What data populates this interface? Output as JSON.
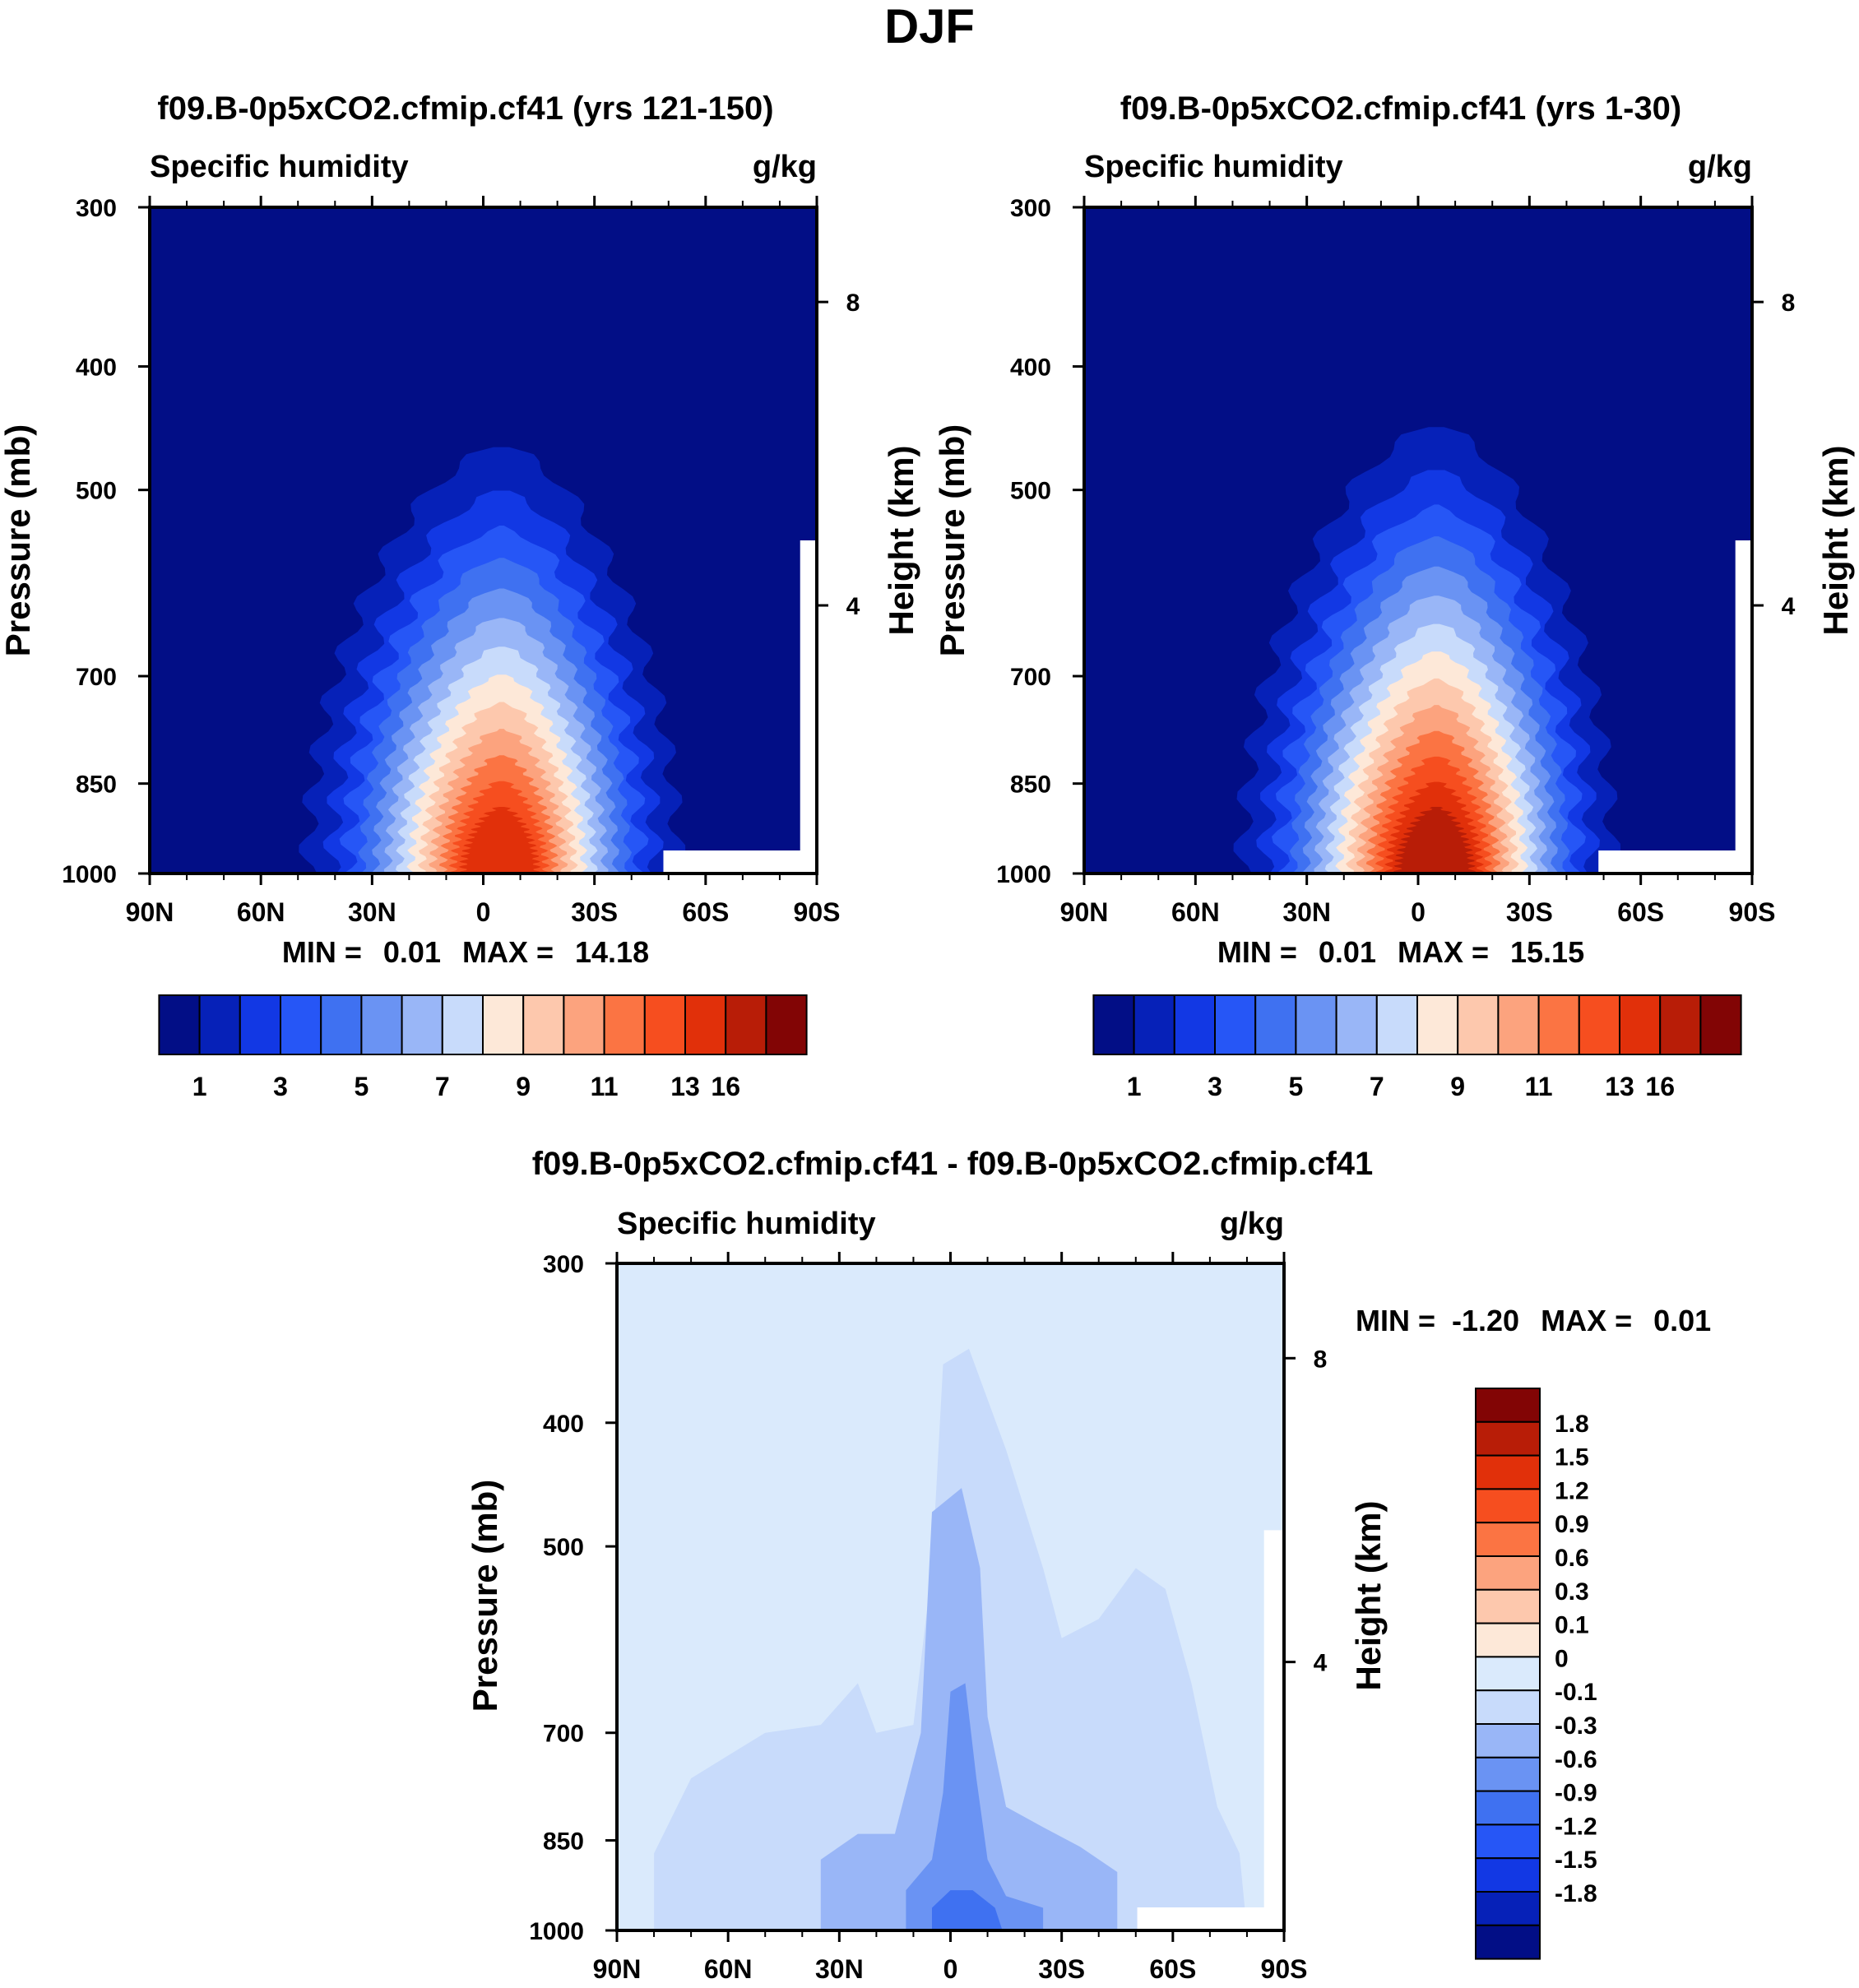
{
  "figure": {
    "title": "DJF"
  },
  "palettes": {
    "absolute": [
      "#020e86",
      "#0621b8",
      "#1238e4",
      "#2656f6",
      "#3f71f1",
      "#6a93f3",
      "#99b6f7",
      "#c8dbfb",
      "#fde8d8",
      "#fdc8ad",
      "#fca37e",
      "#fb7443",
      "#f64e1f",
      "#e1300a",
      "#b81d07",
      "#820505"
    ],
    "difference": [
      "#020e86",
      "#0621b8",
      "#1238e4",
      "#2656f6",
      "#3f71f1",
      "#6a93f3",
      "#99b6f7",
      "#c8dbfb",
      "#daeafc",
      "#fde8d8",
      "#fdc8ad",
      "#fca37e",
      "#fb7443",
      "#f64e1f",
      "#e1300a",
      "#b81d07",
      "#820505"
    ]
  },
  "chart_data": [
    {
      "type": "contour",
      "title": "f09.B-0p5xCO2.cfmip.cf41 (yrs 121-150)",
      "left_label": "Specific humidity",
      "units": "g/kg",
      "xlabel": "",
      "ylabel": "Pressure (mb)",
      "y2label": "Height (km)",
      "x_ticks": [
        "90N",
        "60N",
        "30N",
        "0",
        "30S",
        "60S",
        "90S"
      ],
      "y_ticks": [
        "300",
        "400",
        "500",
        "700",
        "850",
        "1000"
      ],
      "y2_ticks": [
        "8",
        "4"
      ],
      "min_label": "MIN =",
      "min_value": "0.01",
      "max_label": "MAX =",
      "max_value": "14.18",
      "colorbar_labels": [
        "1",
        "3",
        "5",
        "7",
        "9",
        "11",
        "13",
        "16"
      ],
      "peak_level": 13
    },
    {
      "type": "contour",
      "title": "f09.B-0p5xCO2.cfmip.cf41 (yrs 1-30)",
      "left_label": "Specific humidity",
      "units": "g/kg",
      "xlabel": "",
      "ylabel": "Pressure (mb)",
      "y2label": "Height (km)",
      "x_ticks": [
        "90N",
        "60N",
        "30N",
        "0",
        "30S",
        "60S",
        "90S"
      ],
      "y_ticks": [
        "300",
        "400",
        "500",
        "700",
        "850",
        "1000"
      ],
      "y2_ticks": [
        "8",
        "4"
      ],
      "min_label": "MIN =",
      "min_value": "0.01",
      "max_label": "MAX =",
      "max_value": "15.15",
      "colorbar_labels": [
        "1",
        "3",
        "5",
        "7",
        "9",
        "11",
        "13",
        "16"
      ],
      "peak_level": 14
    },
    {
      "type": "contour",
      "title": "f09.B-0p5xCO2.cfmip.cf41 - f09.B-0p5xCO2.cfmip.cf41",
      "left_label": "Specific humidity",
      "units": "g/kg",
      "xlabel": "",
      "ylabel": "Pressure (mb)",
      "y2label": "Height (km)",
      "x_ticks": [
        "90N",
        "60N",
        "30N",
        "0",
        "30S",
        "60S",
        "90S"
      ],
      "y_ticks": [
        "300",
        "400",
        "500",
        "700",
        "850",
        "1000"
      ],
      "y2_ticks": [
        "8",
        "4"
      ],
      "min_label": "MIN =",
      "min_value": "-1.20",
      "max_label": "MAX =",
      "max_value": "0.01",
      "colorbar_labels": [
        "1.8",
        "1.5",
        "1.2",
        "0.9",
        "0.6",
        "0.3",
        "0.1",
        "0",
        "-0.1",
        "-0.3",
        "-0.6",
        "-0.9",
        "-1.2",
        "-1.5",
        "-1.8"
      ]
    }
  ]
}
